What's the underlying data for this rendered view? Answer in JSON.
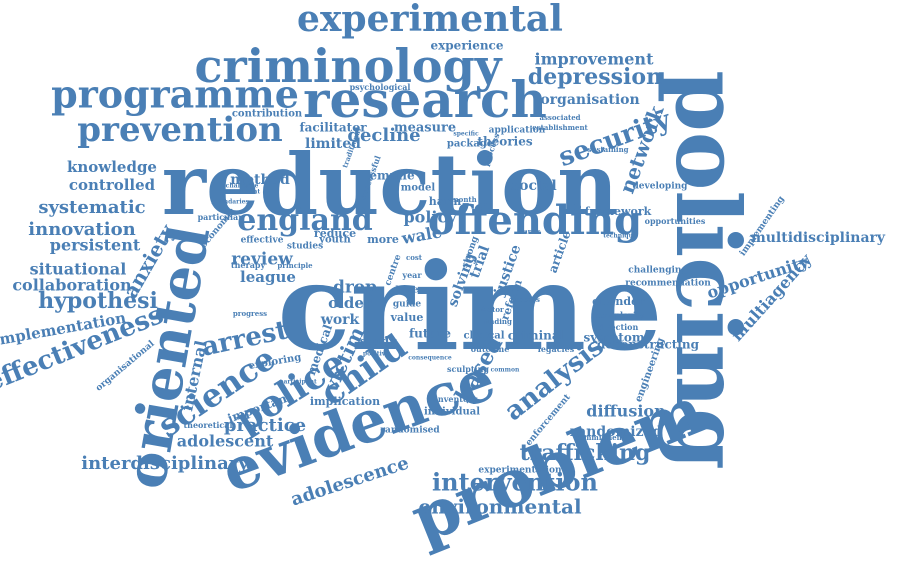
{
  "cloud": {
    "color": "#4a7fb5",
    "words": [
      "crime",
      "policing",
      "reduction",
      "problem",
      "evidence",
      "oriented",
      "research",
      "criminology",
      "experimental",
      "programme",
      "prevention",
      "offending",
      "england",
      "security",
      "depression",
      "network",
      "organisation",
      "improvement",
      "experience",
      "police",
      "child",
      "science",
      "arrest",
      "anxiety",
      "hypothesi",
      "effectiveness",
      "implementation",
      "situational",
      "collaboration",
      "persistent",
      "innovation",
      "systematic",
      "controlled",
      "knowledge",
      "analysis",
      "based",
      "victim",
      "internal",
      "practice",
      "adolescent",
      "interdisciplinary",
      "adolescence",
      "environmental",
      "intervention",
      "trafficking",
      "randomized",
      "diffusion",
      "multiagency",
      "opportunity",
      "multidisciplinary",
      "decline",
      "limited",
      "facilitator",
      "method",
      "review",
      "league",
      "drop",
      "older",
      "work",
      "policy",
      "harm",
      "wale",
      "social",
      "theories",
      "package",
      "measure",
      "reduce",
      "more",
      "youth",
      "studies",
      "effective",
      "economic",
      "application",
      "contribution",
      "psychological",
      "framework",
      "developing",
      "implementing",
      "challenging",
      "recommendation",
      "offender",
      "complexity",
      "direction",
      "deconstructing",
      "symptom",
      "engineering",
      "clinical",
      "criminal",
      "future",
      "value",
      "guide",
      "base",
      "solving",
      "justice",
      "reform",
      "trial",
      "article",
      "implication",
      "individual",
      "inventory",
      "randomised",
      "enforcement",
      "experimentation",
      "important",
      "exploring",
      "theoretical",
      "organisational",
      "medical",
      "study",
      "outcome",
      "legacies",
      "emmie",
      "model",
      "strong",
      "centre",
      "successful",
      "traditional",
      "therapy",
      "principle",
      "particular",
      "year",
      "process",
      "sustaining",
      "establishment",
      "associated",
      "month",
      "specific",
      "challenge",
      "government",
      "boundaries",
      "harms",
      "cost",
      "finding",
      "factor",
      "process",
      "progress",
      "participant",
      "positive",
      "sculpting",
      "common",
      "consequence",
      "commitment",
      "technique",
      "opportunities"
    ]
  }
}
